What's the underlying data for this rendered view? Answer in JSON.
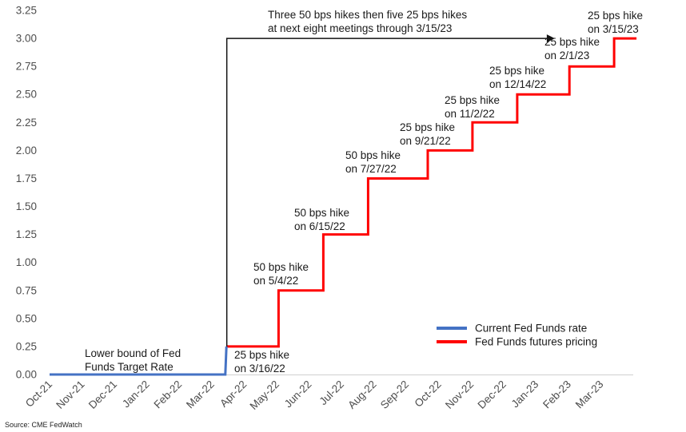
{
  "chart_data": {
    "type": "line",
    "x_ticks": [
      "Oct-21",
      "Nov-21",
      "Dec-21",
      "Jan-22",
      "Feb-22",
      "Mar-22",
      "Apr-22",
      "May-22",
      "Jun-22",
      "Jul-22",
      "Aug-22",
      "Sep-22",
      "Oct-22",
      "Nov-22",
      "Dec-22",
      "Jan-23",
      "Feb-23",
      "Mar-23"
    ],
    "y_ticks": [
      "0.00",
      "0.25",
      "0.50",
      "0.75",
      "1.00",
      "1.25",
      "1.50",
      "1.75",
      "2.00",
      "2.25",
      "2.50",
      "2.75",
      "3.00",
      "3.25"
    ],
    "ylim": [
      0,
      3.25
    ],
    "grid": false,
    "legend_position": "lower-right",
    "series": [
      {
        "name": "Current Fed Funds rate",
        "color": "#4472C4",
        "points": [
          [
            "2021-10-01",
            0.0
          ],
          [
            "2022-03-15",
            0.0
          ],
          [
            "2022-03-16",
            0.25
          ]
        ]
      },
      {
        "name": "Fed Funds futures pricing",
        "color": "#FF0000",
        "points": [
          [
            "2022-03-16",
            0.25
          ],
          [
            "2022-05-04",
            0.25
          ],
          [
            "2022-05-04",
            0.75
          ],
          [
            "2022-06-15",
            0.75
          ],
          [
            "2022-06-15",
            1.25
          ],
          [
            "2022-07-27",
            1.25
          ],
          [
            "2022-07-27",
            1.75
          ],
          [
            "2022-09-21",
            1.75
          ],
          [
            "2022-09-21",
            2.0
          ],
          [
            "2022-11-02",
            2.0
          ],
          [
            "2022-11-02",
            2.25
          ],
          [
            "2022-12-14",
            2.25
          ],
          [
            "2022-12-14",
            2.5
          ],
          [
            "2023-02-01",
            2.5
          ],
          [
            "2023-02-01",
            2.75
          ],
          [
            "2023-03-15",
            2.75
          ],
          [
            "2023-03-15",
            3.0
          ],
          [
            "2023-04-05",
            3.0
          ]
        ]
      }
    ],
    "annotations": [
      {
        "lines": [
          "Lower bound of Fed",
          "Funds Target Rate"
        ]
      },
      {
        "lines": [
          "25 bps hike",
          "on 3/16/22"
        ]
      },
      {
        "lines": [
          "50 bps hike",
          "on 5/4/22"
        ]
      },
      {
        "lines": [
          "50 bps hike",
          "on 6/15/22"
        ]
      },
      {
        "lines": [
          "50 bps hike",
          "on 7/27/22"
        ]
      },
      {
        "lines": [
          "25 bps hike",
          "on 9/21/22"
        ]
      },
      {
        "lines": [
          "25 bps hike",
          "on 11/2/22"
        ]
      },
      {
        "lines": [
          "25 bps hike",
          "on 12/14/22"
        ]
      },
      {
        "lines": [
          "25 bps hike",
          "on 2/1/23"
        ]
      },
      {
        "lines": [
          "25 bps hike",
          "on 3/15/23"
        ]
      },
      {
        "lines": [
          "Three 50 bps hikes then five 25 bps hikes",
          "at next eight meetings through 3/15/23"
        ]
      }
    ],
    "arrow": {
      "from": [
        "2022-03-16",
        0.25
      ],
      "corner": [
        "2022-03-16",
        3.0
      ],
      "to": [
        "2023-01-01",
        3.0
      ]
    }
  },
  "source": "Source: CME FedWatch"
}
